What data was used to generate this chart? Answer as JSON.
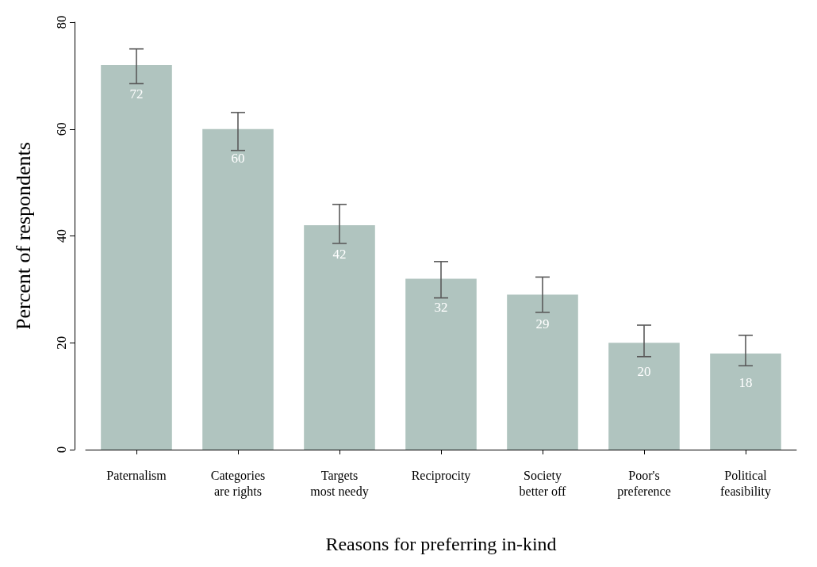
{
  "chart_data": {
    "type": "bar",
    "xlabel": "Reasons for preferring in-kind",
    "ylabel": "Percent of respondents",
    "categories": [
      "Paternalism",
      "Categories\nare rights",
      "Targets\nmost needy",
      "Reciprocity",
      "Society\nbetter off",
      "Poor's\npreference",
      "Political\nfeasibility"
    ],
    "values": [
      72,
      60,
      42,
      32,
      29,
      20,
      18
    ],
    "errors": [
      [
        68.5,
        75.0
      ],
      [
        56.0,
        63.1
      ],
      [
        38.6,
        45.9
      ],
      [
        28.4,
        35.2
      ],
      [
        25.7,
        32.3
      ],
      [
        17.4,
        23.3
      ],
      [
        15.7,
        21.4
      ]
    ],
    "color": "#b0c4bf",
    "ylim": [
      0,
      80
    ],
    "yticks": [
      0,
      20,
      40,
      60,
      80
    ],
    "data_labels": true,
    "grid": false
  }
}
